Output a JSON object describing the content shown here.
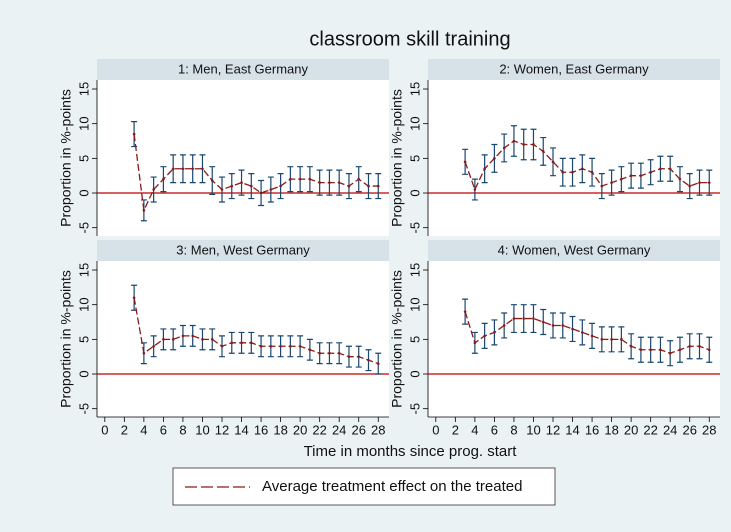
{
  "chart_data": {
    "type": "line",
    "title": "classroom skill training",
    "xlabel": "Time in months since prog. start",
    "ylabel": "Proportion in %-points",
    "legend_label": "Average treatment effect on the treated",
    "color": "#8b1a1a",
    "error_color": "#1a476f",
    "reference_color": "#c00000",
    "xlim": [
      -0.8,
      29.1
    ],
    "ylim": [
      -6.2,
      16.3
    ],
    "xticks": [
      0,
      2,
      4,
      6,
      8,
      10,
      12,
      14,
      16,
      18,
      20,
      22,
      24,
      26,
      28
    ],
    "yticks": [
      -5,
      0,
      5,
      10,
      15
    ],
    "x": [
      3,
      4,
      5,
      6,
      7,
      8,
      9,
      10,
      11,
      12,
      13,
      14,
      15,
      16,
      17,
      18,
      19,
      20,
      21,
      22,
      23,
      24,
      25,
      26,
      27,
      28
    ],
    "panels": [
      {
        "title": "1: Men, East Germany",
        "values": [
          8.5,
          -2.5,
          0.5,
          2,
          3.5,
          3.5,
          3.5,
          3.5,
          1.8,
          0.5,
          1,
          1.5,
          1,
          0,
          0.5,
          1,
          2,
          2,
          2,
          1.5,
          1.5,
          1.5,
          1,
          2,
          1,
          1
        ],
        "errors": [
          1.8,
          1.5,
          1.8,
          1.8,
          2,
          2,
          2,
          2,
          2,
          1.8,
          1.8,
          1.8,
          1.8,
          1.8,
          1.8,
          1.8,
          1.8,
          1.8,
          1.8,
          1.8,
          1.8,
          1.8,
          1.8,
          1.8,
          1.8,
          1.8
        ]
      },
      {
        "title": "2: Women, East Germany",
        "values": [
          4.5,
          0.5,
          3.5,
          5,
          6.5,
          7.5,
          7,
          7,
          6,
          4.5,
          3,
          3,
          3.5,
          3,
          1,
          1.5,
          2,
          2.5,
          2.5,
          3,
          3.5,
          3.5,
          2,
          1,
          1.5,
          1.5
        ],
        "errors": [
          1.8,
          1.5,
          2,
          2,
          2,
          2.2,
          2.2,
          2.2,
          2,
          2,
          2,
          2,
          2,
          2,
          1.8,
          1.8,
          1.8,
          1.8,
          1.8,
          1.8,
          1.8,
          1.8,
          1.8,
          1.8,
          1.8,
          1.8
        ]
      },
      {
        "title": "3: Men, West Germany",
        "values": [
          11,
          3,
          4,
          5,
          5,
          5.5,
          5.5,
          5,
          5,
          4,
          4.5,
          4.5,
          4.5,
          4,
          4,
          4,
          4,
          4,
          3.5,
          3,
          3,
          3,
          2.5,
          2.5,
          2,
          1.5
        ],
        "errors": [
          1.8,
          1.5,
          1.5,
          1.5,
          1.5,
          1.5,
          1.5,
          1.5,
          1.5,
          1.5,
          1.5,
          1.5,
          1.5,
          1.5,
          1.5,
          1.5,
          1.5,
          1.5,
          1.5,
          1.5,
          1.5,
          1.5,
          1.5,
          1.5,
          1.5,
          1.5
        ]
      },
      {
        "title": "4: Women, West Germany",
        "values": [
          9,
          4.5,
          5.5,
          6,
          7,
          8,
          8,
          8,
          7.5,
          7,
          7,
          6.5,
          6,
          5.5,
          5,
          5,
          5,
          4,
          3.5,
          3.5,
          3.5,
          3,
          3.5,
          4,
          4,
          3.5
        ],
        "errors": [
          1.8,
          1.5,
          1.8,
          1.8,
          1.8,
          2,
          2,
          2,
          1.8,
          1.8,
          1.8,
          1.8,
          1.8,
          1.8,
          1.8,
          1.8,
          1.8,
          1.8,
          1.8,
          1.8,
          1.8,
          1.8,
          1.8,
          1.8,
          1.8,
          1.8
        ]
      }
    ]
  }
}
